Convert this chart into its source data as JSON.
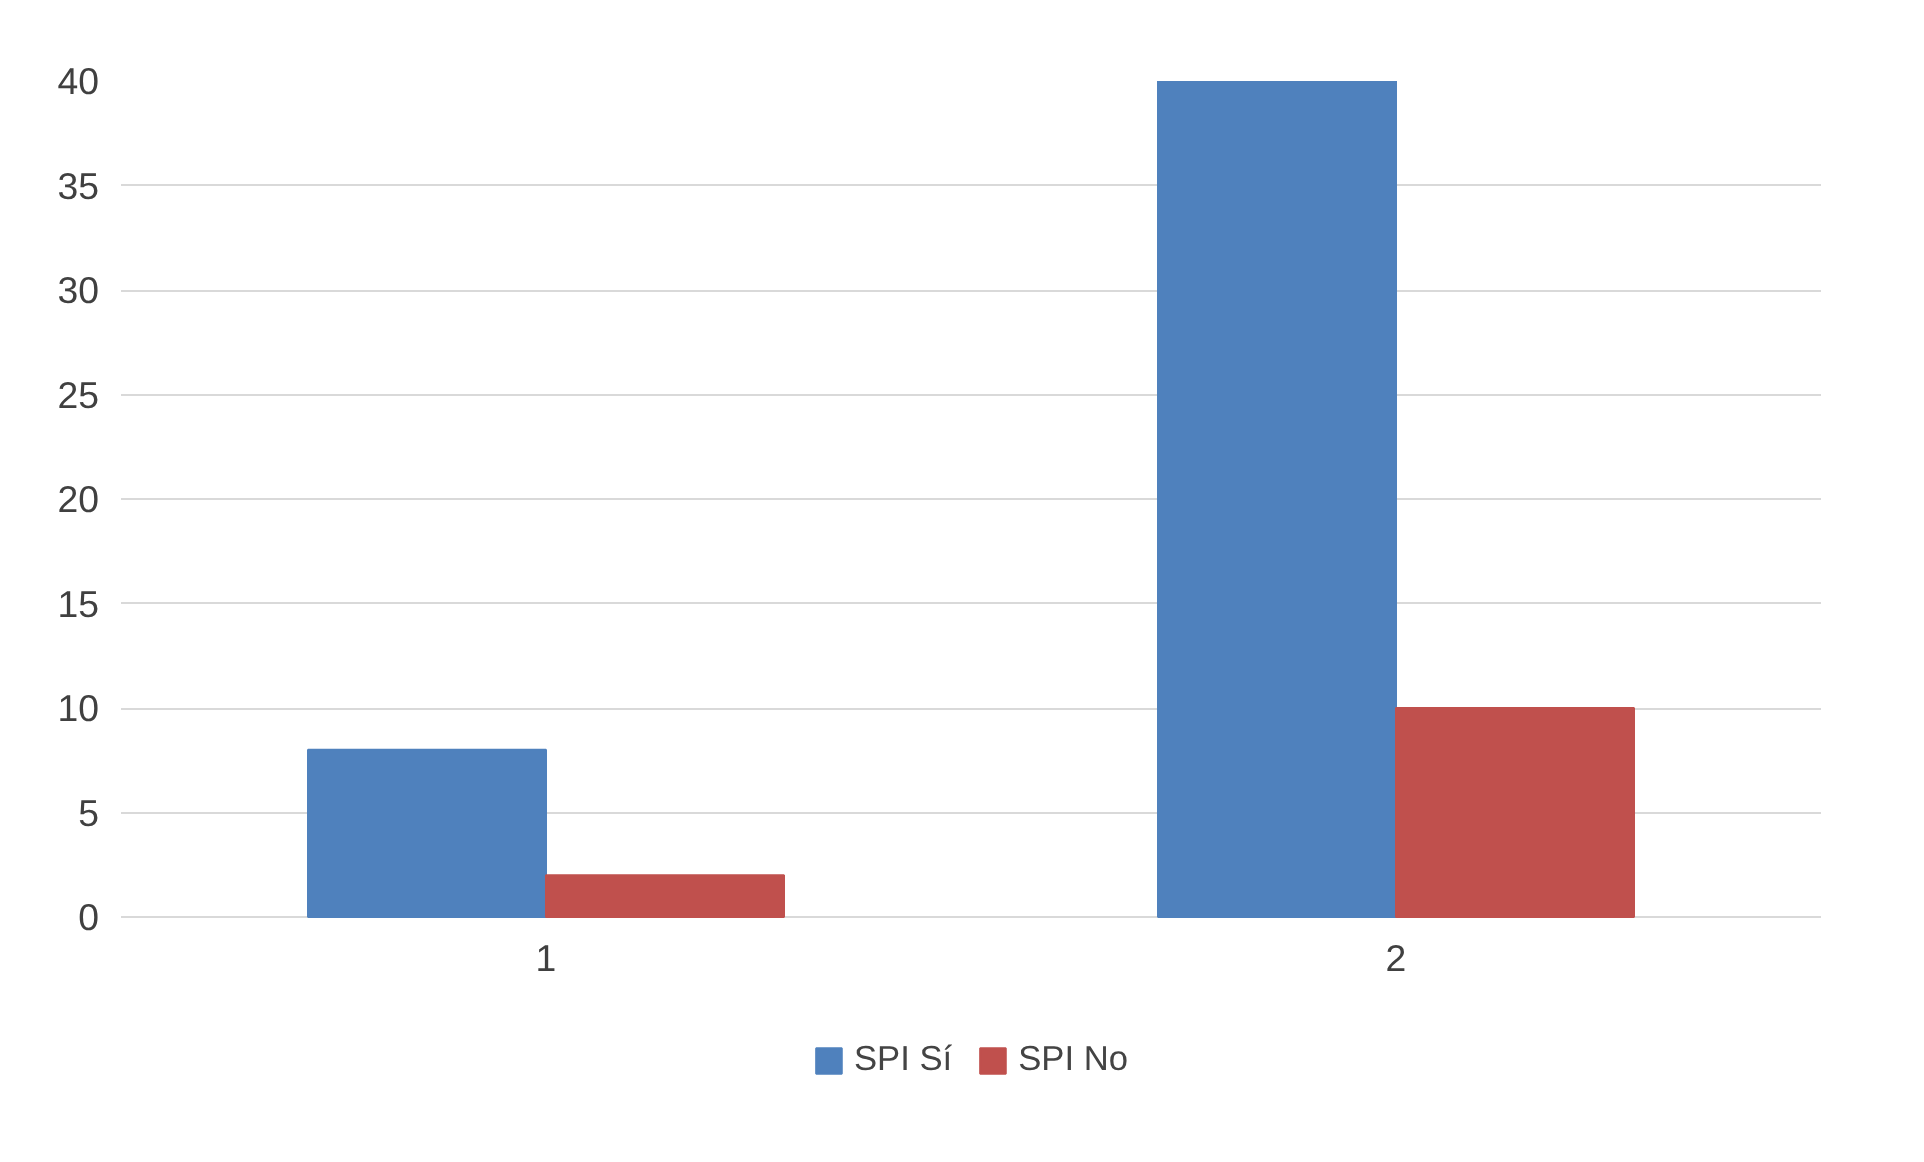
{
  "chart_data": {
    "type": "bar",
    "categories": [
      "1",
      "2"
    ],
    "series": [
      {
        "name": "SPI Sí",
        "color": "#4f81bd",
        "values": [
          8,
          40
        ]
      },
      {
        "name": "SPI No",
        "color": "#c0504d",
        "values": [
          2,
          10
        ]
      }
    ],
    "ylim": [
      0,
      40
    ],
    "yticks": [
      0,
      5,
      10,
      15,
      20,
      25,
      30,
      35,
      40
    ],
    "grid": "y",
    "legend": "bottom"
  }
}
